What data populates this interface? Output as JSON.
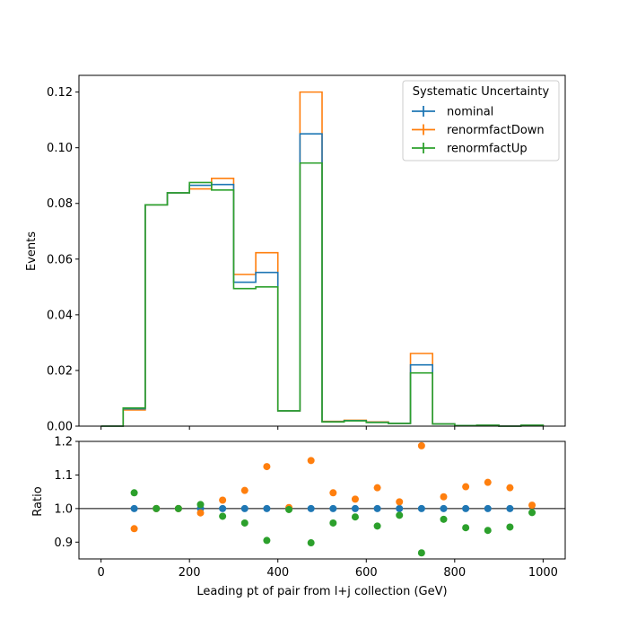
{
  "chart_data": [
    {
      "type": "line",
      "drawstyle": "steps",
      "ylabel": "Events",
      "xlim": [
        -50,
        1050
      ],
      "ylim": [
        0,
        0.126
      ],
      "yticks": [
        0.0,
        0.02,
        0.04,
        0.06,
        0.08,
        0.1,
        0.12
      ],
      "ytick_labels": [
        "0.00",
        "0.02",
        "0.04",
        "0.06",
        "0.08",
        "0.10",
        "0.12"
      ],
      "bin_edges": [
        0,
        50,
        100,
        150,
        200,
        250,
        300,
        350,
        400,
        450,
        500,
        550,
        600,
        650,
        700,
        750,
        800,
        850,
        900,
        950,
        1000
      ],
      "legend": {
        "title": "Systematic Uncertainty",
        "position": "top-right"
      },
      "series": [
        {
          "name": "nominal",
          "color": "#1f77b4",
          "values": [
            0.0,
            0.0062,
            0.0795,
            0.0838,
            0.0865,
            0.0868,
            0.0517,
            0.0552,
            0.0055,
            0.105,
            0.0016,
            0.002,
            0.0014,
            0.001,
            0.022,
            0.0008,
            0.0002,
            0.0003,
            0.0,
            0.0003
          ]
        },
        {
          "name": "renormfactDown",
          "color": "#ff7f0e",
          "values": [
            0.0,
            0.0058,
            0.0795,
            0.0838,
            0.0852,
            0.089,
            0.0545,
            0.0623,
            0.0055,
            0.12,
            0.0017,
            0.0021,
            0.0015,
            0.001,
            0.0261,
            0.0008,
            0.0002,
            0.0003,
            0.0,
            0.0003
          ]
        },
        {
          "name": "renormfactUp",
          "color": "#2ca02c",
          "values": [
            0.0,
            0.0065,
            0.0795,
            0.0838,
            0.0875,
            0.0848,
            0.0494,
            0.05,
            0.0055,
            0.0945,
            0.0015,
            0.0019,
            0.0013,
            0.001,
            0.0191,
            0.0008,
            0.0002,
            0.0003,
            0.0,
            0.0003
          ]
        }
      ]
    },
    {
      "type": "scatter",
      "xlabel": "Leading pt of pair from l+j collection (GeV)",
      "ylabel": "Ratio",
      "xlim": [
        -50,
        1050
      ],
      "ylim": [
        0.85,
        1.2
      ],
      "xticks": [
        0,
        200,
        400,
        600,
        800,
        1000
      ],
      "xtick_labels": [
        "0",
        "200",
        "400",
        "600",
        "800",
        "1000"
      ],
      "yticks": [
        0.9,
        1.0,
        1.1,
        1.2
      ],
      "ytick_labels": [
        "0.9",
        "1.0",
        "1.1",
        "1.2"
      ],
      "reference_line": 1.0,
      "series": [
        {
          "name": "nominal",
          "color": "#1f77b4",
          "x": [
            75,
            125,
            175,
            225,
            275,
            325,
            375,
            425,
            475,
            525,
            575,
            625,
            675,
            725,
            775,
            825,
            875,
            925
          ],
          "y": [
            1.0,
            1.0,
            1.0,
            1.0,
            1.0,
            1.0,
            1.0,
            1.0,
            1.0,
            1.0,
            1.0,
            1.0,
            1.0,
            1.0,
            1.0,
            1.0,
            1.0,
            1.0
          ]
        },
        {
          "name": "renormfactDown",
          "color": "#ff7f0e",
          "x": [
            75,
            125,
            175,
            225,
            275,
            325,
            375,
            425,
            475,
            525,
            575,
            625,
            675,
            725,
            775,
            825,
            875,
            925,
            975
          ],
          "y": [
            0.94,
            1.0,
            1.0,
            0.987,
            1.025,
            1.054,
            1.125,
            1.003,
            1.143,
            1.047,
            1.028,
            1.062,
            1.02,
            1.187,
            1.035,
            1.065,
            1.078,
            1.062,
            1.01
          ]
        },
        {
          "name": "renormfactUp",
          "color": "#2ca02c",
          "x": [
            75,
            125,
            175,
            225,
            275,
            325,
            375,
            425,
            475,
            525,
            575,
            625,
            675,
            725,
            775,
            825,
            875,
            925,
            975
          ],
          "y": [
            1.047,
            1.0,
            1.0,
            1.012,
            0.977,
            0.957,
            0.905,
            0.997,
            0.898,
            0.957,
            0.975,
            0.948,
            0.98,
            0.868,
            0.968,
            0.943,
            0.935,
            0.945,
            0.988
          ]
        }
      ]
    }
  ]
}
